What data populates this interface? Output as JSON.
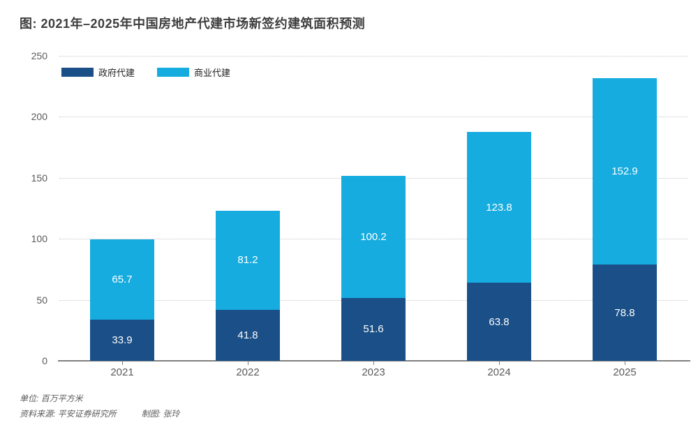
{
  "title": "图: 2021年–2025年中国房地产代建市场新签约建筑面积预测",
  "colors": {
    "government": "#1b4f87",
    "commercial": "#16acdf",
    "title_text": "#3d3d3d",
    "axis_text": "#595959",
    "gridline": "#c7c7c7",
    "axis_line": "#7f7f7f",
    "bar_label": "#ffffff"
  },
  "chart_data": {
    "type": "bar",
    "stacked": true,
    "title": "图: 2021年–2025年中国房地产代建市场新签约建筑面积预测",
    "categories": [
      "2021",
      "2022",
      "2023",
      "2024",
      "2025"
    ],
    "series": [
      {
        "name": "政府代建",
        "color": "#1b4f87",
        "values": [
          33.9,
          41.8,
          51.6,
          63.8,
          78.8
        ]
      },
      {
        "name": "商业代建",
        "color": "#16acdf",
        "values": [
          65.7,
          81.2,
          100.2,
          123.8,
          152.9
        ]
      }
    ],
    "xlabel": "",
    "ylabel": "",
    "ylim": [
      0,
      250
    ],
    "yticks": [
      0,
      50,
      100,
      150,
      200,
      250
    ],
    "grid": "horizontal dotted",
    "legend_position": "top-left inside",
    "value_labels": "inside segments, white"
  },
  "footer": {
    "unit": "单位: 百万平方米",
    "source": "资料来源: 平安证券研究所",
    "credit": "制图: 张玲"
  }
}
